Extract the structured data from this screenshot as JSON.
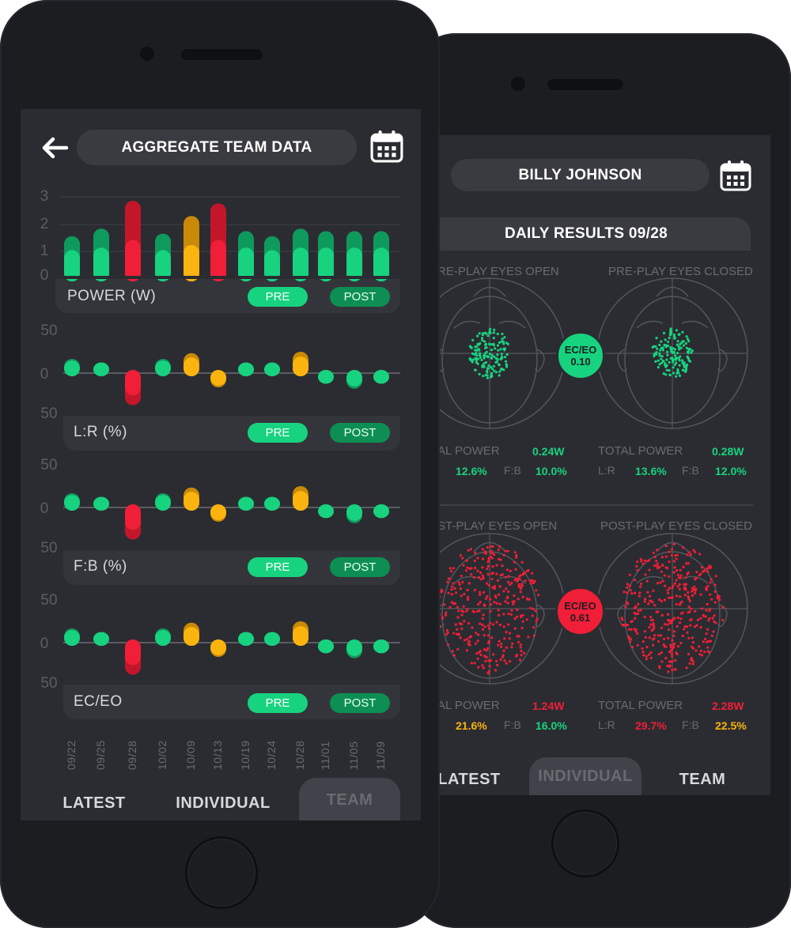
{
  "colors": {
    "green": "#17d37f",
    "green_dark": "#0f9a5d",
    "yellow": "#fbb40e",
    "red": "#f01e37",
    "red_dark": "#c4162b",
    "bg": "#2b2c31"
  },
  "front": {
    "header_title": "AGGREGATE TEAM DATA",
    "back_icon": "arrow-left-icon",
    "calendar_icon": "calendar-icon",
    "dates": [
      "09/22",
      "09/25",
      "09/28",
      "10/02",
      "10/09",
      "10/13",
      "10/19",
      "10/24",
      "10/28",
      "11/01",
      "11/05",
      "11/09"
    ],
    "power": {
      "label": "POWER (W)",
      "axis": [
        "3",
        "2",
        "1",
        "0"
      ],
      "pre_label": "PRE",
      "post_label": "POST",
      "pre": [
        0.8,
        0.9,
        1.2,
        0.8,
        1.0,
        1.2,
        0.9,
        0.8,
        0.9,
        0.9,
        0.9,
        0.9
      ],
      "post": [
        1.6,
        1.9,
        3.0,
        1.7,
        2.4,
        2.9,
        1.8,
        1.6,
        1.9,
        1.8,
        1.8,
        1.8
      ],
      "status": [
        "green",
        "green",
        "red",
        "green",
        "yellow",
        "red",
        "green",
        "green",
        "green",
        "green",
        "green",
        "green"
      ]
    },
    "lr": {
      "label": "L:R (%)",
      "axis": [
        "50",
        "0",
        "50"
      ],
      "pre_label": "PRE",
      "post_label": "POST",
      "values": [
        20,
        15,
        -45,
        20,
        28,
        -20,
        15,
        15,
        30,
        -15,
        -22,
        -15
      ],
      "status": [
        "green",
        "green",
        "red",
        "green",
        "yellow",
        "yellow",
        "green",
        "green",
        "yellow",
        "green",
        "green",
        "green"
      ]
    },
    "fb": {
      "label": "F:B (%)",
      "axis": [
        "50",
        "0",
        "50"
      ],
      "pre_label": "PRE",
      "post_label": "POST",
      "values": [
        20,
        15,
        -45,
        20,
        28,
        -20,
        15,
        15,
        30,
        -15,
        -22,
        -15
      ],
      "status": [
        "green",
        "green",
        "red",
        "green",
        "yellow",
        "yellow",
        "green",
        "green",
        "yellow",
        "green",
        "green",
        "green"
      ]
    },
    "eceo": {
      "label": "EC/EO",
      "axis": [
        "50",
        "0",
        "50"
      ],
      "pre_label": "PRE",
      "post_label": "POST",
      "values": [
        20,
        15,
        -45,
        20,
        28,
        -20,
        15,
        15,
        30,
        -15,
        -22,
        -15
      ],
      "status": [
        "green",
        "green",
        "red",
        "green",
        "yellow",
        "yellow",
        "green",
        "green",
        "yellow",
        "green",
        "green",
        "green"
      ]
    },
    "tabs": [
      "LATEST",
      "INDIVIDUAL",
      "TEAM"
    ],
    "active_tab": "TEAM"
  },
  "back": {
    "header_title": "BILLY JOHNSON",
    "calendar_icon": "calendar-icon",
    "daily_title": "DAILY RESULTS 09/28",
    "pre": {
      "open_label": "RE-PLAY EYES OPEN",
      "closed_label": "PRE-PLAY EYES CLOSED",
      "badge_top": "EC/EO",
      "badge_value": "0.10",
      "total_power_label_left": "AL POWER",
      "total_power_left": "0.24W",
      "total_power_label_right": "TOTAL POWER",
      "total_power_right": "0.28W",
      "lr_label": "L:R",
      "lr_left": "12.6%",
      "lr_right": "13.6%",
      "fb_label": "F:B",
      "fb_left": "10.0%",
      "fb_right": "12.0%"
    },
    "post": {
      "open_label": "ST-PLAY EYES OPEN",
      "closed_label": "POST-PLAY EYES CLOSED",
      "badge_top": "EC/EO",
      "badge_value": "0.61",
      "total_power_label_left": "AL POWER",
      "total_power_left": "1.24W",
      "total_power_label_right": "TOTAL POWER",
      "total_power_right": "2.28W",
      "lr_label": "L:R",
      "lr_left": "21.6%",
      "lr_right": "29.7%",
      "fb_label": "F:B",
      "fb_left": "16.0%",
      "fb_right": "22.5%"
    },
    "tabs": [
      "LATEST",
      "INDIVIDUAL",
      "TEAM"
    ],
    "active_tab": "INDIVIDUAL"
  }
}
